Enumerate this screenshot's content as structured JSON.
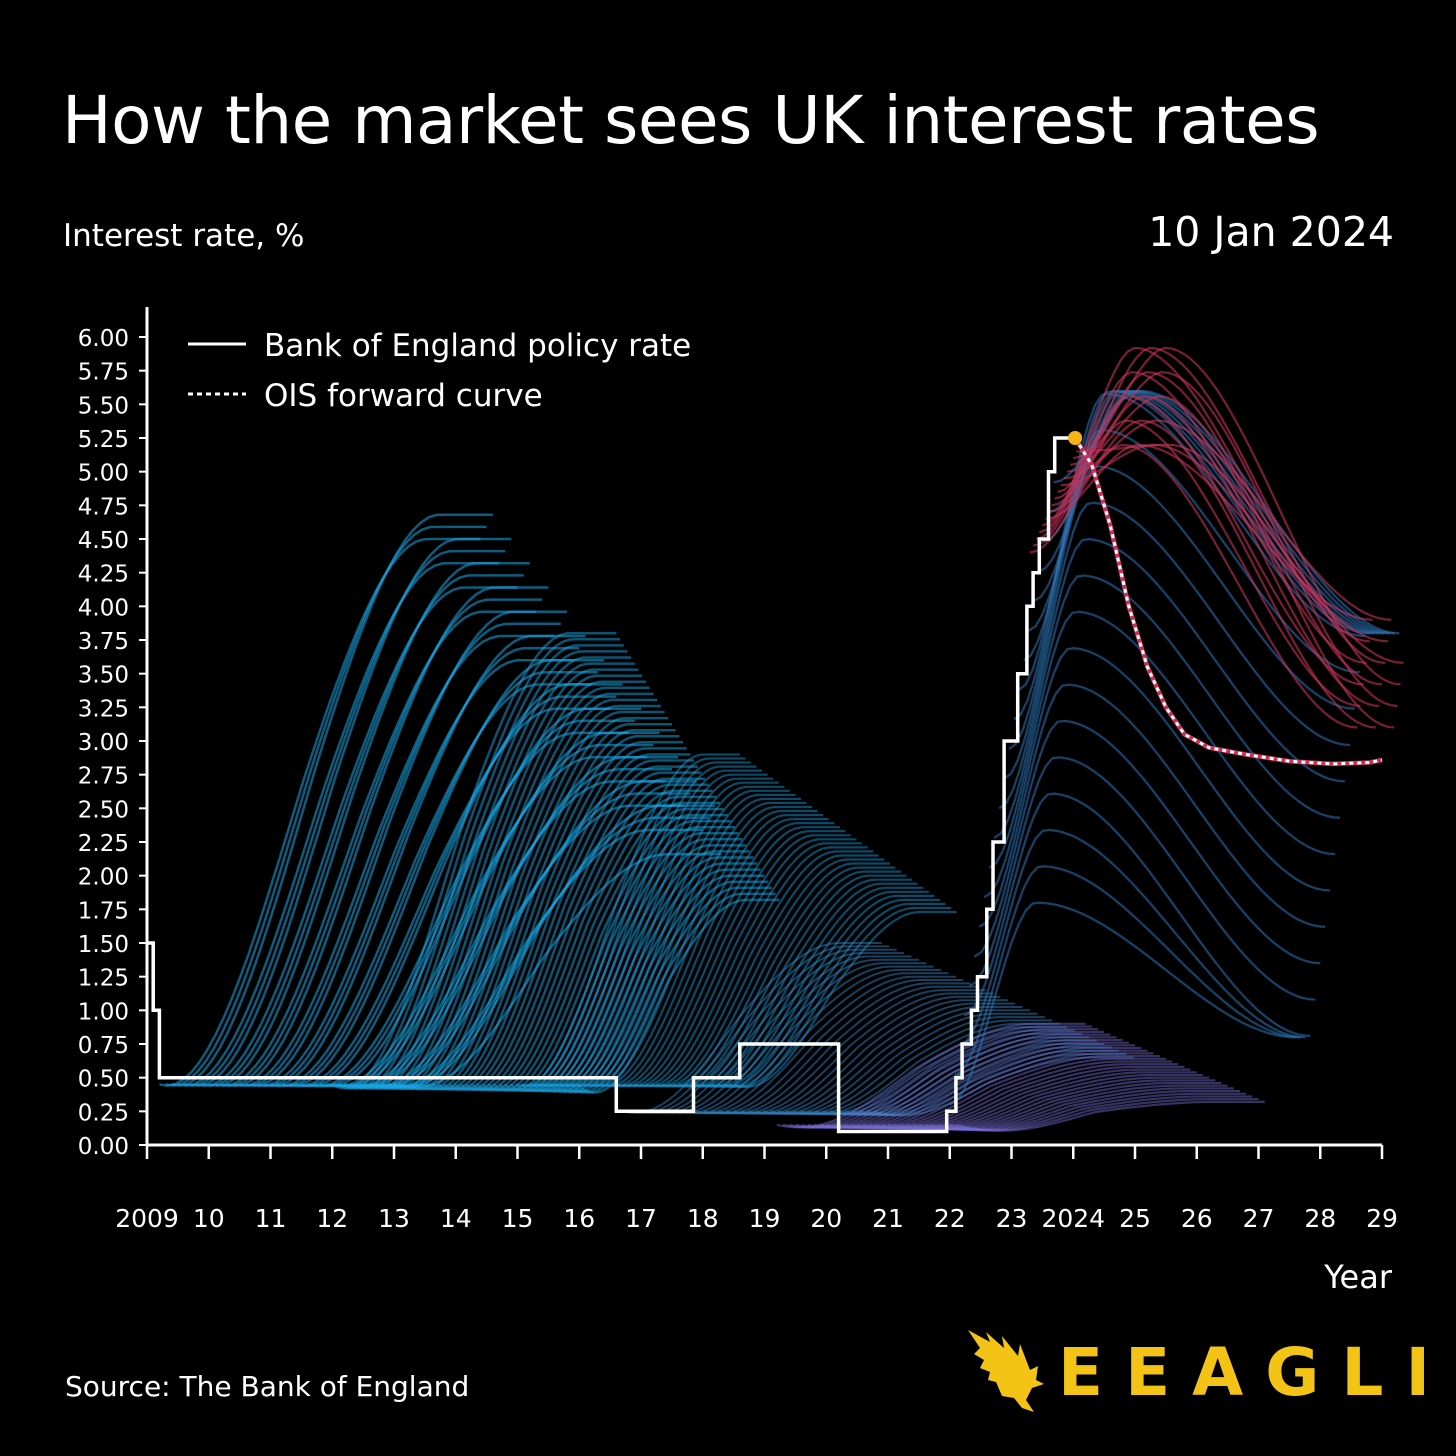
{
  "title": "How the market sees UK interest rates",
  "date": "10 Jan 2024",
  "source": "Source: The Bank of England",
  "brand": "EEAGLI",
  "colors": {
    "background": "#000000",
    "policy": "#ffffff",
    "early_curves": "#1aa7e6",
    "late_curves": "#c8335a",
    "highlight": "#f5b316",
    "brand": "#f3c316"
  },
  "chart_data": {
    "type": "line",
    "title": "How the market sees UK interest rates",
    "ylabel": "Interest rate, %",
    "xlabel": "Year",
    "xlim": [
      2009,
      2029
    ],
    "ylim": [
      0,
      6
    ],
    "yticks": [
      "0.00",
      "0.25",
      "0.50",
      "0.75",
      "1.00",
      "1.25",
      "1.50",
      "1.75",
      "2.00",
      "2.25",
      "2.50",
      "2.75",
      "3.00",
      "3.25",
      "3.50",
      "3.75",
      "4.00",
      "4.25",
      "4.50",
      "4.75",
      "5.00",
      "5.25",
      "5.50",
      "5.75",
      "6.00"
    ],
    "xticks": [
      "2009",
      "10",
      "11",
      "12",
      "13",
      "14",
      "15",
      "16",
      "17",
      "18",
      "19",
      "20",
      "21",
      "22",
      "23",
      "2024",
      "25",
      "26",
      "27",
      "28",
      "29"
    ],
    "legend": {
      "position": "top-left",
      "entries": [
        {
          "label": "Bank of England policy rate",
          "style": "solid"
        },
        {
          "label": "OIS forward curve",
          "style": "dashed"
        }
      ]
    },
    "series": [
      {
        "name": "Bank of England policy rate",
        "steps": [
          [
            2009.0,
            1.5
          ],
          [
            2009.1,
            1.0
          ],
          [
            2009.2,
            0.5
          ],
          [
            2016.6,
            0.25
          ],
          [
            2017.85,
            0.5
          ],
          [
            2018.6,
            0.75
          ],
          [
            2020.2,
            0.1
          ],
          [
            2021.95,
            0.25
          ],
          [
            2022.1,
            0.5
          ],
          [
            2022.2,
            0.75
          ],
          [
            2022.35,
            1.0
          ],
          [
            2022.45,
            1.25
          ],
          [
            2022.6,
            1.75
          ],
          [
            2022.7,
            2.25
          ],
          [
            2022.88,
            3.0
          ],
          [
            2023.1,
            3.5
          ],
          [
            2023.25,
            4.0
          ],
          [
            2023.35,
            4.25
          ],
          [
            2023.45,
            4.5
          ],
          [
            2023.6,
            5.0
          ],
          [
            2023.7,
            5.25
          ],
          [
            2024.03,
            5.25
          ]
        ]
      },
      {
        "name": "OIS forward curve",
        "points": [
          [
            2024.03,
            5.25
          ],
          [
            2024.3,
            5.05
          ],
          [
            2024.6,
            4.6
          ],
          [
            2024.9,
            4.0
          ],
          [
            2025.2,
            3.55
          ],
          [
            2025.5,
            3.25
          ],
          [
            2025.8,
            3.05
          ],
          [
            2026.2,
            2.95
          ],
          [
            2026.8,
            2.9
          ],
          [
            2027.5,
            2.85
          ],
          [
            2028.2,
            2.83
          ],
          [
            2028.8,
            2.84
          ],
          [
            2029.0,
            2.86
          ]
        ]
      }
    ],
    "highlight_point": {
      "x": 2024.03,
      "y": 5.25
    }
  },
  "legend_labels": {
    "policy": "Bank of England policy rate",
    "ois": "OIS forward curve"
  }
}
